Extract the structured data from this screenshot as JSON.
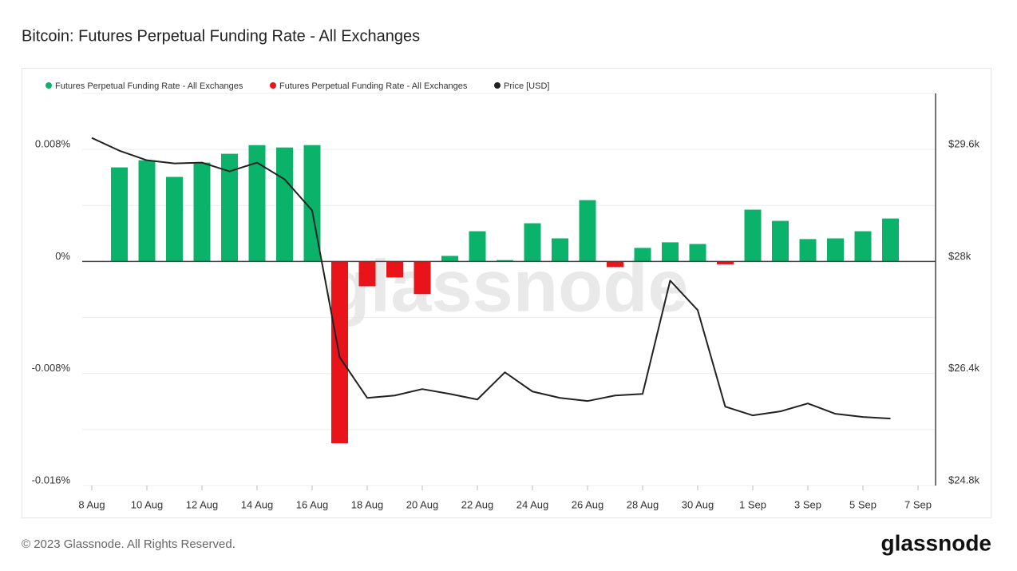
{
  "chart_data": {
    "type": "bar",
    "title": "Bitcoin: Futures Perpetual Funding Rate - All Exchanges",
    "watermark": "glassnode",
    "footer": "© 2023 Glassnode. All Rights Reserved.",
    "logo": "glassnode",
    "x": [
      "8 Aug",
      "9 Aug",
      "10 Aug",
      "11 Aug",
      "12 Aug",
      "13 Aug",
      "14 Aug",
      "15 Aug",
      "16 Aug",
      "17 Aug",
      "18 Aug",
      "19 Aug",
      "20 Aug",
      "21 Aug",
      "22 Aug",
      "23 Aug",
      "24 Aug",
      "25 Aug",
      "26 Aug",
      "27 Aug",
      "28 Aug",
      "29 Aug",
      "30 Aug",
      "31 Aug",
      "1 Sep",
      "2 Sep",
      "3 Sep",
      "4 Sep",
      "5 Sep",
      "6 Sep"
    ],
    "xticks": [
      "8 Aug",
      "10 Aug",
      "12 Aug",
      "14 Aug",
      "16 Aug",
      "18 Aug",
      "20 Aug",
      "22 Aug",
      "24 Aug",
      "26 Aug",
      "28 Aug",
      "30 Aug",
      "1 Sep",
      "3 Sep",
      "5 Sep",
      "7 Sep"
    ],
    "series": [
      {
        "name": "Futures Perpetual Funding Rate - All Exchanges",
        "color": "#0bb36a",
        "type": "bar",
        "values": [
          null,
          0.00672,
          0.00723,
          0.00604,
          0.00706,
          0.00769,
          0.00831,
          0.00814,
          0.00831,
          null,
          null,
          null,
          null,
          0.0004,
          0.00216,
          0.0001,
          0.00273,
          0.00165,
          0.00438,
          null,
          0.00097,
          0.00137,
          0.00125,
          null,
          0.0037,
          0.0029,
          0.0016,
          0.00165,
          0.00216,
          0.00307
        ]
      },
      {
        "name": "Futures Perpetual Funding Rate - All Exchanges",
        "color": "#e8141a",
        "type": "bar",
        "values": [
          null,
          null,
          null,
          null,
          null,
          null,
          null,
          null,
          null,
          -0.01298,
          -0.00177,
          -0.00114,
          -0.00233,
          null,
          null,
          null,
          null,
          null,
          null,
          -0.0004,
          null,
          null,
          null,
          -0.0002,
          null,
          null,
          null,
          null,
          null,
          null
        ]
      },
      {
        "name": "Price [USD]",
        "color": "#222222",
        "type": "line",
        "axis": "y2",
        "values": [
          29765,
          29583,
          29446,
          29401,
          29412,
          29287,
          29412,
          29173,
          28729,
          26633,
          26052,
          26086,
          26178,
          26109,
          26029,
          26417,
          26143,
          26052,
          26007,
          26086,
          26109,
          27727,
          27305,
          25927,
          25802,
          25859,
          25973,
          25825,
          25779,
          25756
        ]
      }
    ],
    "ylim": [
      -0.016,
      0.012
    ],
    "yticks": [
      {
        "value": -0.016,
        "label": "-0.016%"
      },
      {
        "value": -0.008,
        "label": "-0.008%"
      },
      {
        "value": 0,
        "label": "0%"
      },
      {
        "value": 0.008,
        "label": "0.008%"
      }
    ],
    "ygrid": [
      -0.012,
      -0.004,
      0.004,
      0.012
    ],
    "y2lim": [
      24800,
      30400
    ],
    "y2ticks": [
      {
        "value": 24800,
        "label": "$24.8k"
      },
      {
        "value": 26400,
        "label": "$26.4k"
      },
      {
        "value": 28000,
        "label": "$28k"
      },
      {
        "value": 29600,
        "label": "$29.6k"
      }
    ],
    "grid": true
  }
}
